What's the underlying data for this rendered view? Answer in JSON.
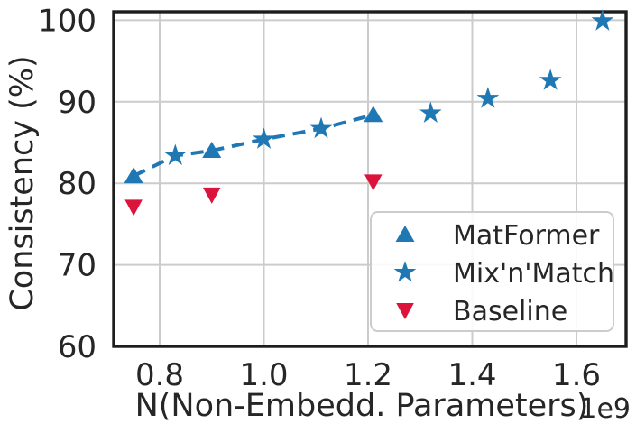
{
  "figure": {
    "background": "#ffffff",
    "text_color": "#262626",
    "grid_color": "#cccccc",
    "spine_color": "#1d1d1d"
  },
  "chart_data": {
    "type": "scatter",
    "title": "",
    "xlabel": "N(Non-Embedd. Parameters)",
    "ylabel": "Consistency (%)",
    "x_offset_text": "1e9",
    "xlim": [
      0.7117,
      1.6952
    ],
    "ylim": [
      60,
      101.04
    ],
    "xticks": [
      0.8,
      1.0,
      1.2,
      1.4,
      1.6
    ],
    "xtick_labels": [
      "0.8",
      "1.0",
      "1.2",
      "1.4",
      "1.6"
    ],
    "yticks": [
      60,
      70,
      80,
      90,
      100
    ],
    "ytick_labels": [
      "60",
      "70",
      "80",
      "90",
      "100"
    ],
    "grid": true,
    "legend_position": "lower right",
    "series": [
      {
        "name": "MatFormer",
        "marker": "triangle-up",
        "color": "#1f77b4",
        "points": [
          [
            0.75,
            80.9
          ],
          [
            0.9,
            84.0
          ],
          [
            1.21,
            88.4
          ]
        ]
      },
      {
        "name": "Mix'n'Match",
        "marker": "star",
        "color": "#1f77b4",
        "points": [
          [
            0.83,
            83.4
          ],
          [
            1.0,
            85.4
          ],
          [
            1.11,
            86.7
          ],
          [
            1.32,
            88.6
          ],
          [
            1.43,
            90.4
          ],
          [
            1.55,
            92.6
          ],
          [
            1.65,
            99.9
          ]
        ]
      },
      {
        "name": "Baseline",
        "marker": "triangle-down",
        "color": "#dc143c",
        "points": [
          [
            0.75,
            77.1
          ],
          [
            0.9,
            78.6
          ],
          [
            1.21,
            80.2
          ]
        ]
      }
    ],
    "trend_line": {
      "style": "dashed",
      "color": "#1f77b4",
      "points": [
        [
          0.75,
          80.9
        ],
        [
          0.83,
          83.4
        ],
        [
          0.9,
          84.0
        ],
        [
          1.0,
          85.4
        ],
        [
          1.11,
          86.7
        ],
        [
          1.21,
          88.4
        ]
      ]
    }
  }
}
